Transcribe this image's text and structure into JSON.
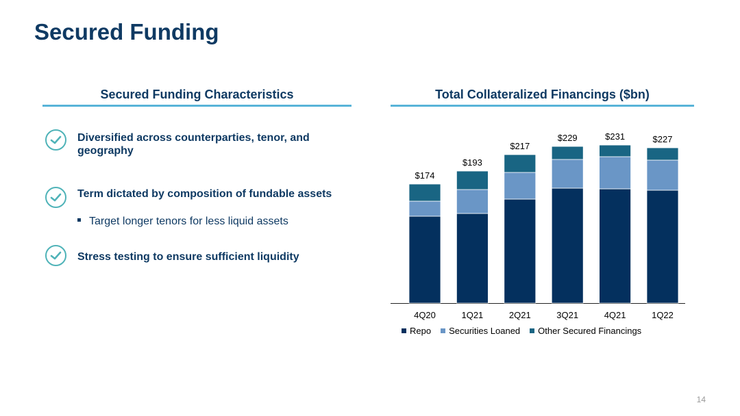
{
  "slide": {
    "title": "Secured Funding",
    "page_number": "14"
  },
  "left_panel": {
    "heading": "Secured Funding Characteristics",
    "bullets": [
      {
        "text": "Diversified across counterparties, tenor, and geography"
      },
      {
        "text": "Term dictated by composition of fundable assets",
        "sub": "Target longer tenors for less liquid assets"
      },
      {
        "text": "Stress testing to ensure sufficient liquidity"
      }
    ],
    "icon": "check-circle-icon"
  },
  "colors": {
    "title": "#0f3a63",
    "rule": "#58b4d8",
    "check": "#4fb3b8",
    "repo": "#04305e",
    "securities_loaned": "#6a96c6",
    "other": "#196583"
  },
  "chart_data": {
    "type": "bar",
    "stacked": true,
    "title": "Total Collateralized Financings ($bn)",
    "categories": [
      "4Q20",
      "1Q21",
      "2Q21",
      "3Q21",
      "4Q21",
      "1Q22"
    ],
    "series": [
      {
        "name": "Repo",
        "color": "#04305e",
        "values": [
          127,
          131,
          152,
          168,
          167,
          165
        ]
      },
      {
        "name": "Securities Loaned",
        "color": "#6a96c6",
        "values": [
          22,
          35,
          39,
          42,
          47,
          44
        ]
      },
      {
        "name": "Other Secured Financings",
        "color": "#196583",
        "values": [
          25,
          27,
          26,
          19,
          17,
          18
        ]
      }
    ],
    "totals": [
      "$174",
      "$193",
      "$217",
      "$229",
      "$231",
      "$227"
    ],
    "ylim": [
      0,
      240
    ],
    "grid": false,
    "legend": "bottom"
  }
}
